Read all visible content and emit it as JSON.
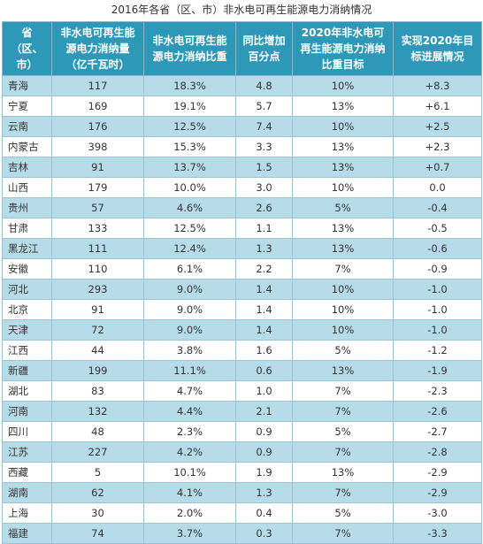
{
  "title": "2016年各省（区、市）非水电可再生能源电力消纳情况",
  "headers": [
    "省（区、市）",
    "非水电可再生能源电力消纳量（亿千瓦时）",
    "非水电可再生能源电力消纳比重",
    "同比增加百分点",
    "2020年非水电可再生能源电力消纳比重目标",
    "实现2020年目标进展情况"
  ],
  "rows": [
    [
      "青海",
      "117",
      "18.3%",
      "4.8",
      "10%",
      "+8.3"
    ],
    [
      "宁夏",
      "169",
      "19.1%",
      "5.7",
      "13%",
      "+6.1"
    ],
    [
      "云南",
      "176",
      "12.5%",
      "7.4",
      "10%",
      "+2.5"
    ],
    [
      "内蒙古",
      "398",
      "15.3%",
      "3.3",
      "13%",
      "+2.3"
    ],
    [
      "吉林",
      "91",
      "13.7%",
      "1.5",
      "13%",
      "+0.7"
    ],
    [
      "山西",
      "179",
      "10.0%",
      "3.0",
      "10%",
      "0.0"
    ],
    [
      "贵州",
      "57",
      "4.6%",
      "2.6",
      "5%",
      "-0.4"
    ],
    [
      "甘肃",
      "133",
      "12.5%",
      "1.1",
      "13%",
      "-0.5"
    ],
    [
      "黑龙江",
      "111",
      "12.4%",
      "1.3",
      "13%",
      "-0.6"
    ],
    [
      "安徽",
      "110",
      "6.1%",
      "2.2",
      "7%",
      "-0.9"
    ],
    [
      "河北",
      "293",
      "9.0%",
      "1.4",
      "10%",
      "-1.0"
    ],
    [
      "北京",
      "91",
      "9.0%",
      "1.4",
      "10%",
      "-1.0"
    ],
    [
      "天津",
      "72",
      "9.0%",
      "1.4",
      "10%",
      "-1.0"
    ],
    [
      "江西",
      "44",
      "3.8%",
      "1.6",
      "5%",
      "-1.2"
    ],
    [
      "新疆",
      "199",
      "11.1%",
      "0.6",
      "13%",
      "-1.9"
    ],
    [
      "湖北",
      "83",
      "4.7%",
      "1.0",
      "7%",
      "-2.3"
    ],
    [
      "河南",
      "132",
      "4.4%",
      "2.1",
      "7%",
      "-2.6"
    ],
    [
      "四川",
      "48",
      "2.3%",
      "0.9",
      "5%",
      "-2.7"
    ],
    [
      "江苏",
      "227",
      "4.2%",
      "0.9",
      "7%",
      "-2.8"
    ],
    [
      "西藏",
      "5",
      "10.1%",
      "1.9",
      "13%",
      "-2.9"
    ],
    [
      "湖南",
      "62",
      "4.1%",
      "1.3",
      "7%",
      "-2.9"
    ],
    [
      "上海",
      "30",
      "2.0%",
      "0.4",
      "5%",
      "-3.0"
    ],
    [
      "福建",
      "74",
      "3.7%",
      "0.3",
      "7%",
      "-3.3"
    ]
  ],
  "colors": {
    "header_bg": "#2e98b8",
    "header_text": "#ffffff",
    "row_odd_bg": "#b7dce9",
    "row_even_bg": "#ffffff"
  }
}
